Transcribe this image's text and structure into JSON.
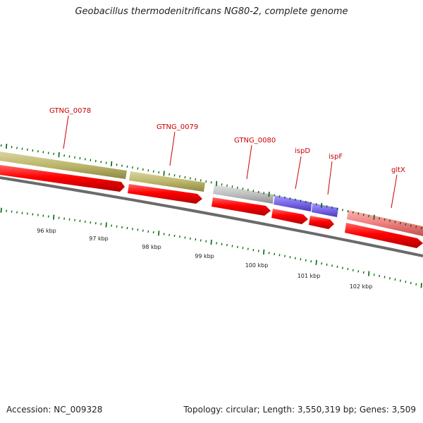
{
  "title": "Geobacillus thermodenitrificans NG80-2, complete genome",
  "footer": {
    "accession": "Accession: NC_009328",
    "stats": "Topology: circular; Length: 3,550,319 bp; Genes: 3,509"
  },
  "colors": {
    "cds_arrow": "#ff0000",
    "gene_olive": "#bdb76b",
    "gene_gray": "#c0c0c0",
    "gene_blue": "#7b68ee",
    "gene_pink": "#f08080",
    "backbone": "#808080",
    "tick": "#006400",
    "gene_label": "#cc0000",
    "scale_label": "#222222"
  },
  "scale_labels": [
    "96 kbp",
    "97 kbp",
    "98 kbp",
    "99 kbp",
    "100 kbp",
    "101 kbp",
    "102 kbp"
  ],
  "genes": [
    {
      "label": "GTNG_0078",
      "color": "olive"
    },
    {
      "label": "GTNG_0079",
      "color": "olive"
    },
    {
      "label": "GTNG_0080",
      "color": "gray"
    },
    {
      "label": "ispD",
      "color": "blue"
    },
    {
      "label": "ispF",
      "color": "blue"
    },
    {
      "label": "gltX",
      "color": "pink"
    }
  ]
}
